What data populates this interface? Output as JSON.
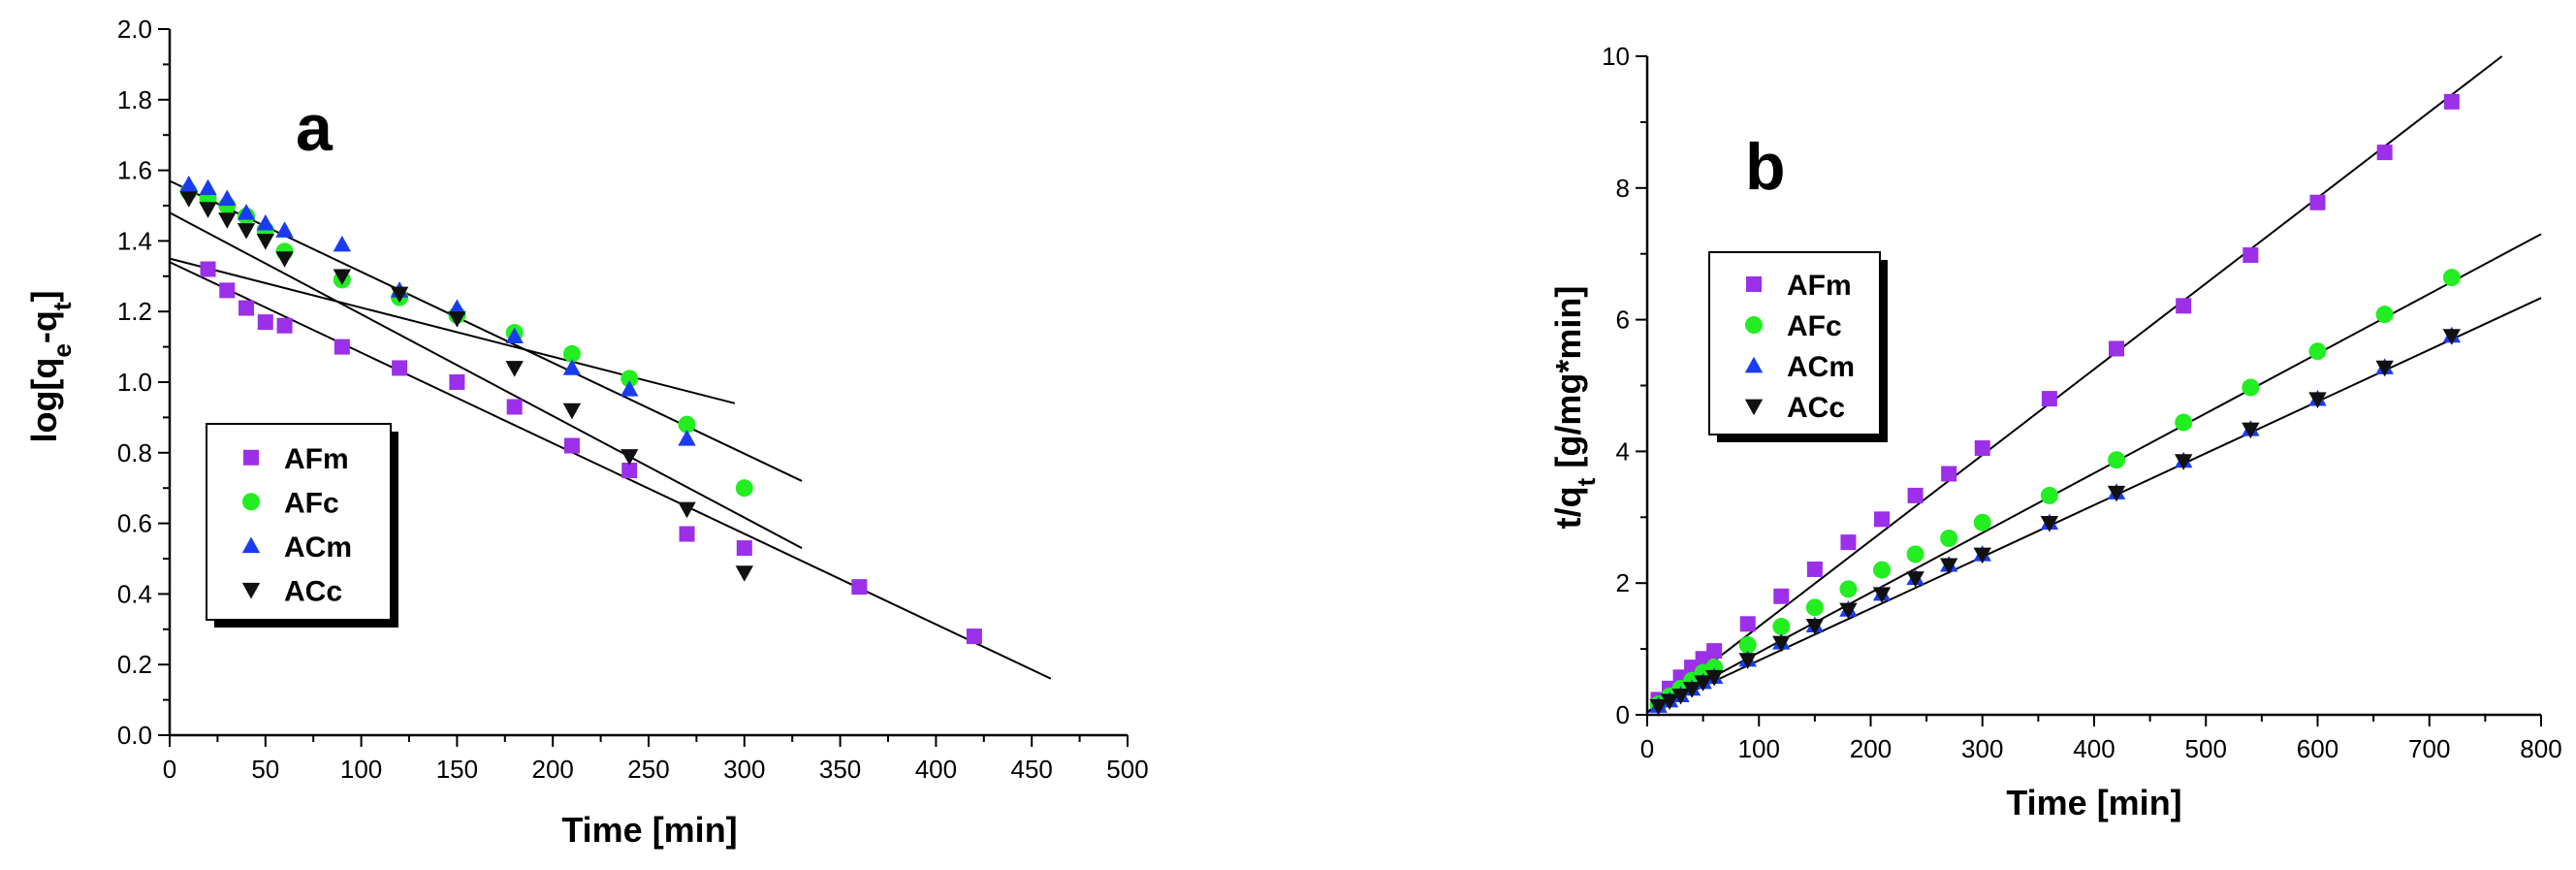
{
  "chart_data": [
    {
      "type": "scatter",
      "panel_label": "a",
      "xlabel": "Time [min]",
      "ylabel": "log[q_e-q_t]",
      "xlim": [
        0,
        500
      ],
      "ylim": [
        0.0,
        2.0
      ],
      "xticks": [
        0,
        50,
        100,
        150,
        200,
        250,
        300,
        350,
        400,
        450,
        500
      ],
      "yticks": [
        "0.0",
        "0.2",
        "0.4",
        "0.6",
        "0.8",
        "1.0",
        "1.2",
        "1.4",
        "1.6",
        "1.8",
        "2.0"
      ],
      "legend_position": "bottom-left",
      "series": [
        {
          "name": "AFm",
          "marker": "square",
          "color": "#9b30e8",
          "x": [
            20,
            30,
            40,
            50,
            60,
            90,
            120,
            150,
            180,
            210,
            240,
            270,
            300,
            360,
            420
          ],
          "y": [
            1.32,
            1.26,
            1.21,
            1.17,
            1.16,
            1.1,
            1.04,
            1.0,
            0.93,
            0.82,
            0.75,
            0.57,
            0.53,
            0.42,
            0.28
          ]
        },
        {
          "name": "AFc",
          "marker": "circle",
          "color": "#22ee22",
          "x": [
            10,
            20,
            30,
            40,
            50,
            60,
            90,
            120,
            150,
            180,
            210,
            240,
            270,
            300
          ],
          "y": [
            1.54,
            1.52,
            1.5,
            1.47,
            1.43,
            1.37,
            1.29,
            1.24,
            1.19,
            1.14,
            1.08,
            1.01,
            0.88,
            0.7
          ]
        },
        {
          "name": "ACm",
          "marker": "triangle-up",
          "color": "#1a3cf0",
          "x": [
            10,
            20,
            30,
            40,
            50,
            60,
            90,
            120,
            150,
            180,
            210,
            240,
            270
          ],
          "y": [
            1.56,
            1.55,
            1.52,
            1.48,
            1.45,
            1.43,
            1.39,
            1.26,
            1.21,
            1.13,
            1.04,
            0.98,
            0.84
          ]
        },
        {
          "name": "ACc",
          "marker": "triangle-down",
          "color": "#111111",
          "x": [
            10,
            20,
            30,
            40,
            50,
            60,
            90,
            120,
            150,
            180,
            210,
            240,
            270,
            300
          ],
          "y": [
            1.52,
            1.49,
            1.46,
            1.43,
            1.4,
            1.35,
            1.3,
            1.25,
            1.18,
            1.04,
            0.92,
            0.79,
            0.64,
            0.46
          ]
        }
      ],
      "fit_lines": [
        {
          "x": [
            0,
            460
          ],
          "y": [
            1.34,
            0.16
          ]
        },
        {
          "x": [
            0,
            295
          ],
          "y": [
            1.35,
            0.94
          ]
        },
        {
          "x": [
            0,
            330
          ],
          "y": [
            1.57,
            0.72
          ]
        },
        {
          "x": [
            0,
            330
          ],
          "y": [
            1.48,
            0.53
          ]
        }
      ]
    },
    {
      "type": "scatter",
      "panel_label": "b",
      "xlabel": "Time [min]",
      "ylabel": "t/q_t [g/mg*min]",
      "xlim": [
        0,
        800
      ],
      "ylim": [
        0,
        10
      ],
      "xticks": [
        0,
        100,
        200,
        300,
        400,
        500,
        600,
        700,
        800
      ],
      "yticks": [
        "0",
        "2",
        "4",
        "6",
        "8",
        "10"
      ],
      "legend_position": "top-left",
      "series": [
        {
          "name": "AFm",
          "marker": "square",
          "color": "#9b30e8",
          "x": [
            10,
            20,
            30,
            40,
            50,
            60,
            90,
            120,
            150,
            180,
            210,
            240,
            270,
            300,
            360,
            420,
            480,
            540,
            600,
            660,
            720
          ],
          "y": [
            0.23,
            0.4,
            0.57,
            0.72,
            0.85,
            0.97,
            1.38,
            1.8,
            2.21,
            2.62,
            2.97,
            3.33,
            3.66,
            4.05,
            4.8,
            5.56,
            6.21,
            6.98,
            7.78,
            8.54,
            9.31
          ]
        },
        {
          "name": "AFc",
          "marker": "circle",
          "color": "#22ee22",
          "x": [
            10,
            20,
            30,
            40,
            50,
            60,
            90,
            120,
            150,
            180,
            210,
            240,
            270,
            300,
            360,
            420,
            480,
            540,
            600,
            660,
            720
          ],
          "y": [
            0.16,
            0.28,
            0.4,
            0.52,
            0.64,
            0.72,
            1.06,
            1.34,
            1.63,
            1.91,
            2.2,
            2.44,
            2.68,
            2.92,
            3.33,
            3.87,
            4.44,
            4.97,
            5.52,
            6.08,
            6.64
          ]
        },
        {
          "name": "ACm",
          "marker": "triangle-up",
          "color": "#1a3cf0",
          "x": [
            10,
            20,
            30,
            40,
            50,
            60,
            90,
            120,
            150,
            180,
            210,
            240,
            270,
            300,
            360,
            420,
            480,
            540,
            600,
            660,
            720
          ],
          "y": [
            0.14,
            0.22,
            0.3,
            0.4,
            0.5,
            0.58,
            0.84,
            1.1,
            1.36,
            1.6,
            1.84,
            2.08,
            2.28,
            2.44,
            2.92,
            3.38,
            3.86,
            4.34,
            4.8,
            5.28,
            5.76
          ]
        },
        {
          "name": "ACc",
          "marker": "triangle-down",
          "color": "#111111",
          "x": [
            10,
            20,
            30,
            40,
            50,
            60,
            90,
            120,
            150,
            180,
            210,
            240,
            270,
            300,
            360,
            420,
            480,
            540,
            600,
            660,
            720
          ],
          "y": [
            0.13,
            0.21,
            0.29,
            0.39,
            0.49,
            0.57,
            0.83,
            1.09,
            1.35,
            1.59,
            1.83,
            2.07,
            2.27,
            2.43,
            2.91,
            3.37,
            3.85,
            4.33,
            4.79,
            5.27,
            5.75
          ]
        }
      ],
      "fit_lines": [
        {
          "x": [
            0,
            765
          ],
          "y": [
            0.04,
            10.0
          ]
        },
        {
          "x": [
            0,
            800
          ],
          "y": [
            0.04,
            7.3
          ]
        },
        {
          "x": [
            0,
            800
          ],
          "y": [
            0.04,
            6.33
          ]
        }
      ]
    }
  ]
}
